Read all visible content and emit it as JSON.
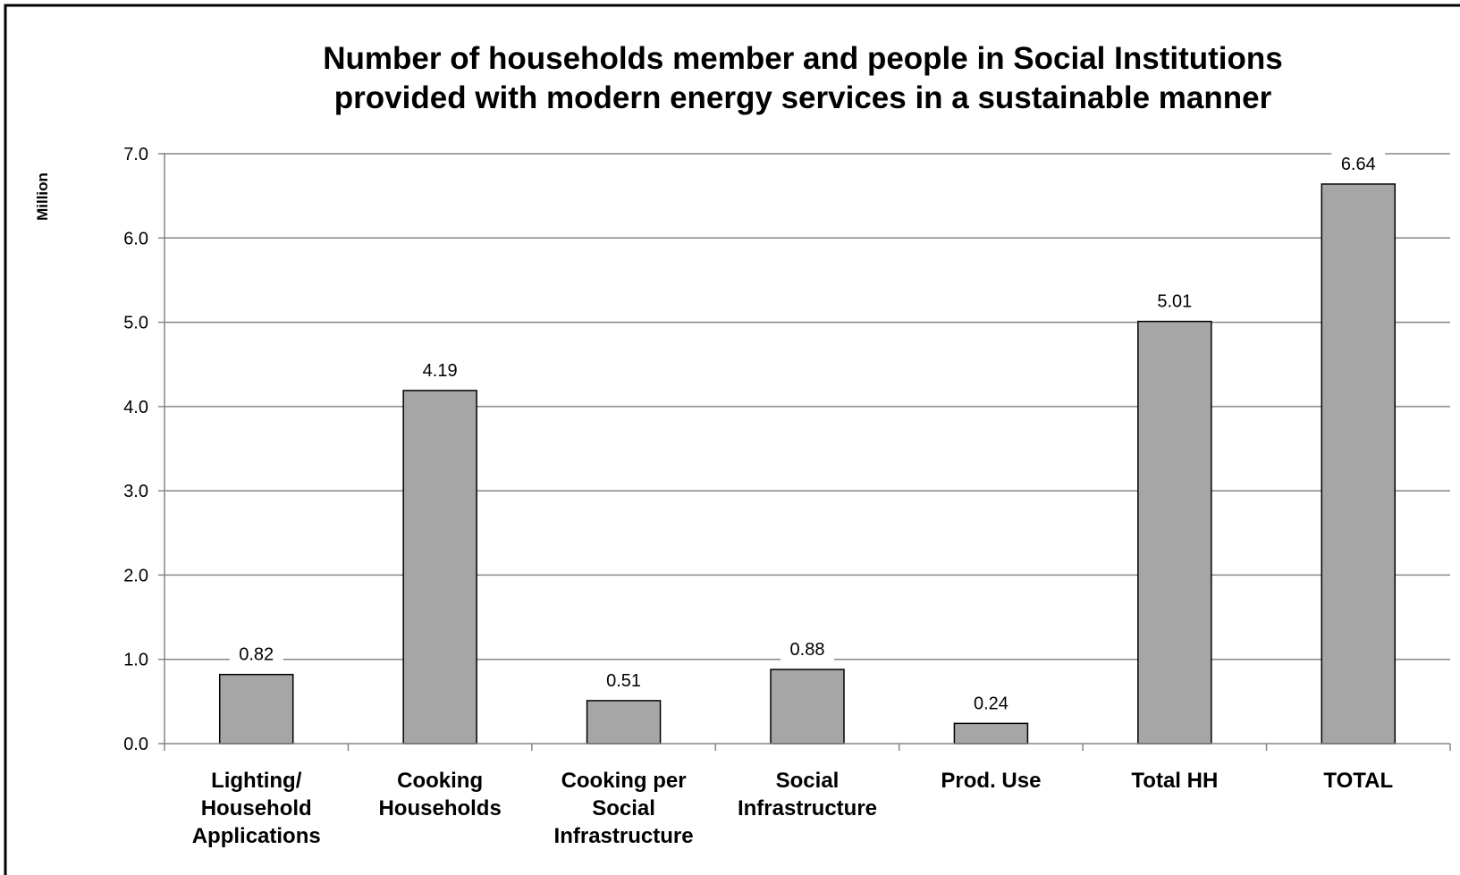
{
  "chart_data": {
    "type": "bar",
    "title": [
      "Number of households member and people in Social Institutions",
      "provided  with modern energy services in a sustainable  manner"
    ],
    "xlabel": "",
    "ylabel": "Million",
    "ylim": [
      0,
      7
    ],
    "yticks": [
      "0.0",
      "1.0",
      "2.0",
      "3.0",
      "4.0",
      "5.0",
      "6.0",
      "7.0"
    ],
    "grid": true,
    "legend": "none",
    "categories": [
      [
        "Lighting/",
        "Household",
        "Applications"
      ],
      [
        "Cooking",
        "Households"
      ],
      [
        "Cooking per",
        "Social",
        "Infrastructure"
      ],
      [
        "Social",
        "Infrastructure"
      ],
      [
        "Prod. Use"
      ],
      [
        "Total HH"
      ],
      [
        "TOTAL"
      ]
    ],
    "values": [
      0.82,
      4.19,
      0.51,
      0.88,
      0.24,
      5.01,
      6.64
    ],
    "value_labels": [
      "0.82",
      "4.19",
      "0.51",
      "0.88",
      "0.24",
      "5.01",
      "6.64"
    ],
    "colors": {
      "bar_fill": "#a6a6a6",
      "bar_stroke": "#000000",
      "grid": "#868686",
      "axis": "#868686",
      "frame": "#000000",
      "background": "#ffffff"
    }
  }
}
